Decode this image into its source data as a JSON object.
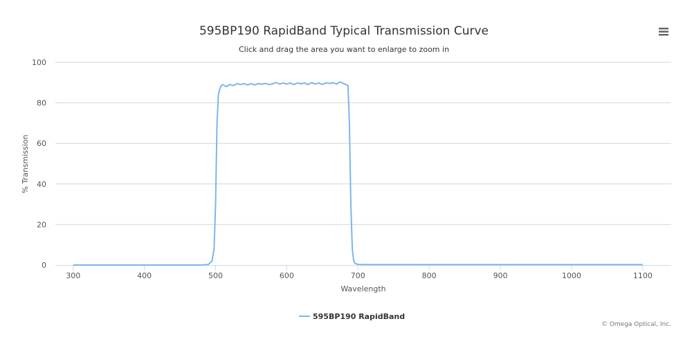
{
  "menu": {
    "icon": "hamburger-menu-icon"
  },
  "credits": "© Omega Optical, Inc.",
  "colors": {
    "series": "#7cb5ec",
    "grid": "#d6d6d6",
    "text": "#333333",
    "menu": "#666666"
  },
  "chart_data": {
    "type": "line",
    "title": "595BP190 RapidBand Typical Transmission Curve",
    "subtitle": "Click and drag the area you want to enlarge to zoom in",
    "xlabel": "Wavelength",
    "ylabel": "% Transmission",
    "xlim": [
      275,
      1140
    ],
    "ylim": [
      0,
      100
    ],
    "x_ticks": [
      "300",
      "400",
      "500",
      "600",
      "700",
      "800",
      "900",
      "1000",
      "1100"
    ],
    "y_ticks": [
      "0",
      "20",
      "40",
      "60",
      "80",
      "100"
    ],
    "grid": true,
    "legend_position": "bottom-center",
    "series": [
      {
        "name": "595BP190 RapidBand",
        "x": [
          300,
          400,
          480,
          490,
          495,
          498,
          500,
          502,
          504,
          506,
          508,
          510,
          515,
          520,
          525,
          530,
          535,
          540,
          545,
          550,
          555,
          560,
          565,
          570,
          575,
          580,
          585,
          590,
          595,
          600,
          605,
          610,
          615,
          620,
          625,
          630,
          635,
          640,
          645,
          650,
          655,
          660,
          665,
          670,
          675,
          680,
          683,
          686,
          688,
          690,
          692,
          694,
          696,
          700,
          710,
          800,
          900,
          1000,
          1100
        ],
        "y": [
          0,
          0,
          0,
          0.3,
          2,
          8,
          30,
          70,
          84,
          87,
          88.5,
          89,
          88,
          89,
          88.5,
          89.5,
          89,
          89.5,
          88.8,
          89.5,
          88.8,
          89.5,
          89.2,
          89.6,
          89,
          89.4,
          90,
          89.2,
          89.8,
          89.2,
          89.8,
          89,
          89.8,
          89.4,
          89.8,
          89,
          90,
          89.3,
          89.8,
          89.1,
          89.8,
          89.6,
          89.9,
          89.3,
          90.3,
          89.5,
          89,
          88.5,
          70,
          30,
          8,
          2,
          0.8,
          0.3,
          0.2,
          0.2,
          0.2,
          0.2,
          0.2
        ]
      }
    ]
  }
}
